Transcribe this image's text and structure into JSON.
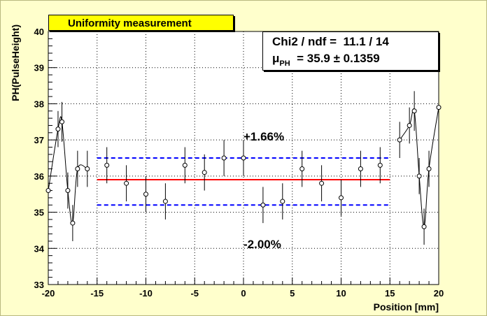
{
  "chart_data": {
    "type": "scatter",
    "title": "Uniformity measurement",
    "xlabel": "Position [mm]",
    "ylabel": "PH(PulseHeight)",
    "xlim": [
      -20,
      20
    ],
    "ylim": [
      33,
      40
    ],
    "xticks": [
      "-20",
      "-15",
      "-10",
      "-5",
      "0",
      "5",
      "10",
      "15",
      "20"
    ],
    "yticks": [
      "33",
      "34",
      "35",
      "36",
      "37",
      "38",
      "39",
      "40"
    ],
    "grid": true,
    "points": [
      {
        "x": -20,
        "y": 35.6,
        "err": 0.5
      },
      {
        "x": -19,
        "y": 37.3,
        "err": 0.5
      },
      {
        "x": -18.6,
        "y": 37.5,
        "err": 0.55
      },
      {
        "x": -18,
        "y": 35.6,
        "err": 0.5
      },
      {
        "x": -17.5,
        "y": 34.7,
        "err": 0.5
      },
      {
        "x": -17,
        "y": 36.2,
        "err": 0.5
      },
      {
        "x": -16,
        "y": 36.2,
        "err": 0.5
      },
      {
        "x": -14,
        "y": 36.3,
        "err": 0.5
      },
      {
        "x": -12,
        "y": 35.8,
        "err": 0.5
      },
      {
        "x": -10,
        "y": 35.5,
        "err": 0.5
      },
      {
        "x": -8,
        "y": 35.3,
        "err": 0.5
      },
      {
        "x": -6,
        "y": 36.3,
        "err": 0.5
      },
      {
        "x": -4,
        "y": 36.1,
        "err": 0.5
      },
      {
        "x": -2,
        "y": 36.5,
        "err": 0.5
      },
      {
        "x": 0,
        "y": 36.5,
        "err": 0.5
      },
      {
        "x": 2,
        "y": 35.2,
        "err": 0.5
      },
      {
        "x": 4,
        "y": 35.3,
        "err": 0.5
      },
      {
        "x": 6,
        "y": 36.2,
        "err": 0.5
      },
      {
        "x": 8,
        "y": 35.8,
        "err": 0.5
      },
      {
        "x": 10,
        "y": 35.4,
        "err": 0.5
      },
      {
        "x": 12,
        "y": 36.2,
        "err": 0.5
      },
      {
        "x": 14,
        "y": 36.3,
        "err": 0.5
      },
      {
        "x": 16,
        "y": 37.0,
        "err": 0.5
      },
      {
        "x": 17,
        "y": 37.4,
        "err": 0.5
      },
      {
        "x": 17.5,
        "y": 37.8,
        "err": 0.55
      },
      {
        "x": 18,
        "y": 36.0,
        "err": 0.5
      },
      {
        "x": 18.5,
        "y": 34.6,
        "err": 0.5
      },
      {
        "x": 19,
        "y": 36.2,
        "err": 0.5
      },
      {
        "x": 20,
        "y": 37.9,
        "err": 0.5
      }
    ],
    "mean_line": {
      "y": 35.9,
      "x_from": -15,
      "x_to": 15,
      "color": "#ff0000"
    },
    "upper_band": {
      "y": 36.5,
      "x_from": -15,
      "x_to": 15,
      "color": "#0000ff"
    },
    "lower_band": {
      "y": 35.2,
      "x_from": -15,
      "x_to": 15,
      "color": "#0000ff"
    },
    "annotations": {
      "upper": "+1.66%",
      "lower": "-2.00%"
    },
    "fit_stats": {
      "chi2_label": "Chi2 / ndf =",
      "chi2_value": "11.1 / 14",
      "mu_symbol": "μ",
      "mu_sub": "PH",
      "mu_value": "=  35.9 ± 0.1359"
    }
  }
}
